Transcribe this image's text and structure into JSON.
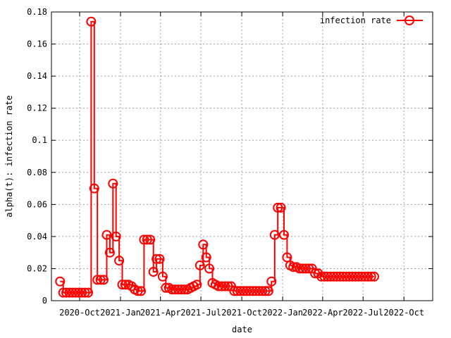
{
  "chart_data": {
    "type": "line",
    "xlabel": "date",
    "ylabel": "alpha(t): infection rate",
    "ylim": [
      0,
      0.18
    ],
    "yticks": [
      "0",
      "0.02",
      "0.04",
      "0.06",
      "0.08",
      "0.1",
      "0.12",
      "0.14",
      "0.16",
      "0.18"
    ],
    "xticks": [
      "2020-Oct",
      "2021-Jan",
      "2021-Apr",
      "2021-Jul",
      "2021-Oct",
      "2022-Jan",
      "2022-Apr",
      "2022-Jul",
      "2022-Oct"
    ],
    "grid": true,
    "legend_position": "top-right",
    "series": [
      {
        "name": "infection rate",
        "color": "#ff0000",
        "marker": "circle",
        "x": [
          "2020-08-18",
          "2020-08-25",
          "2020-09-01",
          "2020-09-08",
          "2020-09-15",
          "2020-09-22",
          "2020-09-29",
          "2020-10-06",
          "2020-10-13",
          "2020-10-20",
          "2020-10-27",
          "2020-11-03",
          "2020-11-10",
          "2020-11-17",
          "2020-11-24",
          "2020-12-01",
          "2020-12-08",
          "2020-12-15",
          "2020-12-22",
          "2020-12-29",
          "2021-01-05",
          "2021-01-12",
          "2021-01-19",
          "2021-01-26",
          "2021-02-02",
          "2021-02-09",
          "2021-02-16",
          "2021-02-23",
          "2021-03-02",
          "2021-03-09",
          "2021-03-16",
          "2021-03-23",
          "2021-03-30",
          "2021-04-06",
          "2021-04-13",
          "2021-04-20",
          "2021-04-27",
          "2021-05-04",
          "2021-05-11",
          "2021-05-18",
          "2021-05-25",
          "2021-06-01",
          "2021-06-08",
          "2021-06-15",
          "2021-06-22",
          "2021-06-29",
          "2021-07-06",
          "2021-07-13",
          "2021-07-20",
          "2021-07-27",
          "2021-08-03",
          "2021-08-10",
          "2021-08-17",
          "2021-08-24",
          "2021-08-31",
          "2021-09-07",
          "2021-09-14",
          "2021-09-21",
          "2021-09-28",
          "2021-10-05",
          "2021-10-12",
          "2021-10-19",
          "2021-10-26",
          "2021-11-02",
          "2021-11-09",
          "2021-11-16",
          "2021-11-23",
          "2021-11-30",
          "2021-12-07",
          "2021-12-14",
          "2021-12-21",
          "2021-12-28",
          "2022-01-04",
          "2022-01-11",
          "2022-01-18",
          "2022-01-25",
          "2022-02-01",
          "2022-02-08",
          "2022-02-15",
          "2022-02-22",
          "2022-03-01",
          "2022-03-08",
          "2022-03-15",
          "2022-03-22",
          "2022-03-29",
          "2022-04-05",
          "2022-04-12",
          "2022-04-19",
          "2022-04-26",
          "2022-05-03",
          "2022-05-10",
          "2022-05-17",
          "2022-05-24",
          "2022-05-31",
          "2022-06-07",
          "2022-06-14",
          "2022-06-21",
          "2022-06-28",
          "2022-07-05",
          "2022-07-12",
          "2022-07-19",
          "2022-07-26"
        ],
        "y": [
          0.012,
          0.005,
          0.005,
          0.005,
          0.005,
          0.005,
          0.005,
          0.005,
          0.005,
          0.005,
          0.174,
          0.07,
          0.013,
          0.013,
          0.013,
          0.041,
          0.03,
          0.073,
          0.04,
          0.025,
          0.01,
          0.01,
          0.01,
          0.009,
          0.007,
          0.006,
          0.006,
          0.038,
          0.038,
          0.038,
          0.018,
          0.026,
          0.026,
          0.015,
          0.008,
          0.008,
          0.007,
          0.007,
          0.007,
          0.007,
          0.007,
          0.007,
          0.008,
          0.009,
          0.01,
          0.022,
          0.035,
          0.027,
          0.02,
          0.011,
          0.01,
          0.009,
          0.009,
          0.009,
          0.009,
          0.009,
          0.006,
          0.006,
          0.006,
          0.006,
          0.006,
          0.006,
          0.006,
          0.006,
          0.006,
          0.006,
          0.006,
          0.006,
          0.012,
          0.041,
          0.058,
          0.058,
          0.041,
          0.027,
          0.022,
          0.021,
          0.021,
          0.02,
          0.02,
          0.02,
          0.02,
          0.02,
          0.017,
          0.017,
          0.015,
          0.015,
          0.015,
          0.015,
          0.015,
          0.015,
          0.015,
          0.015,
          0.015,
          0.015,
          0.015,
          0.015,
          0.015,
          0.015,
          0.015,
          0.015,
          0.015,
          0.015
        ]
      }
    ]
  }
}
